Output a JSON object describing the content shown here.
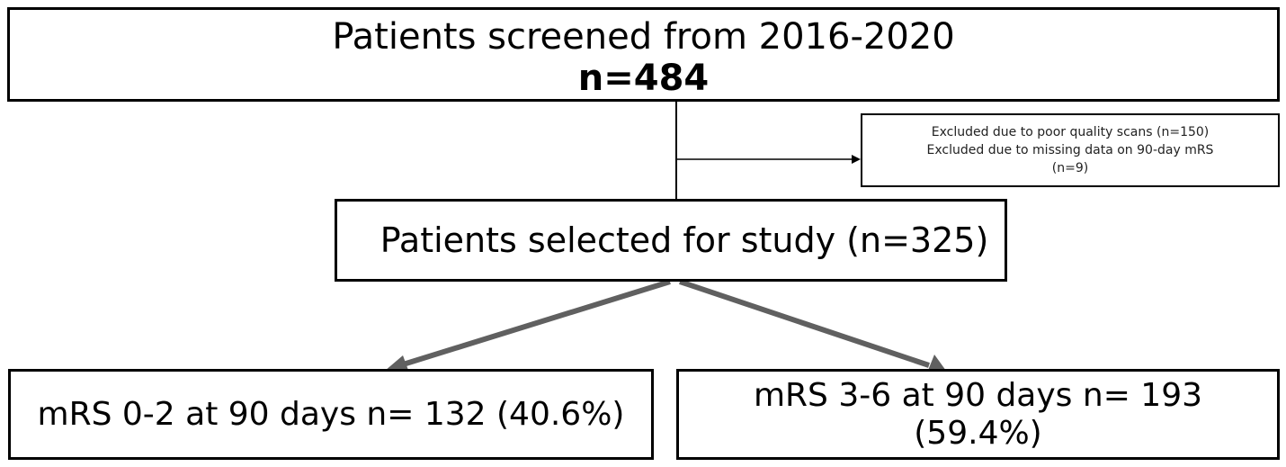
{
  "screened": {
    "title": "Patients screened from 2016-2020",
    "count": "n=484"
  },
  "excluded": {
    "line1": "Excluded due to poor quality scans (n=150)",
    "line2": "Excluded due to missing data on 90-day mRS",
    "line3": "(n=9)"
  },
  "selected": {
    "label": "Patients selected for study (n=325)"
  },
  "outcome_left": {
    "label": "mRS 0-2 at 90 days n= 132 (40.6%)"
  },
  "outcome_right": {
    "line1": "mRS 3-6 at 90 days n= 193",
    "line2": "(59.4%)"
  },
  "colors": {
    "box_border": "#000000",
    "thin_connector": "#000000",
    "thick_arrow": "#606060"
  }
}
